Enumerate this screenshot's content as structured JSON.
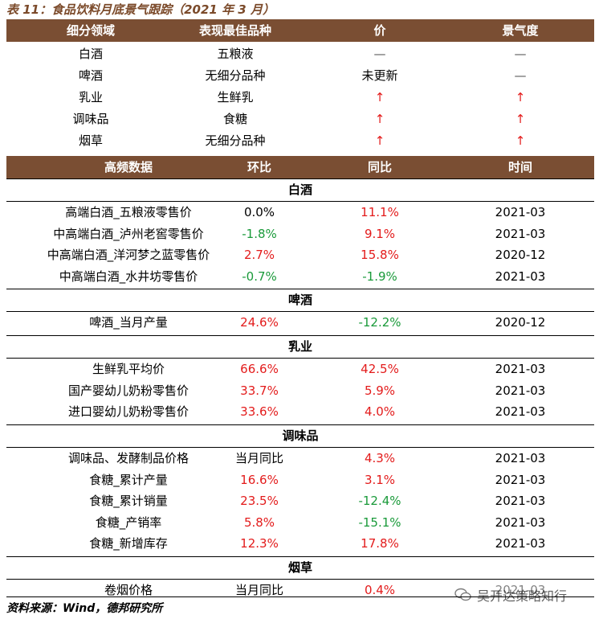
{
  "title": "表 11：食品饮料月底景气跟踪（2021 年 3 月）",
  "top_header": [
    "细分领域",
    "表现最佳品种",
    "价",
    "景气度"
  ],
  "top_rows": [
    {
      "segment": "白酒",
      "best": "五粮液",
      "price": "—",
      "prosperity": "—",
      "price_color": "dash",
      "pros_color": "dash"
    },
    {
      "segment": "啤酒",
      "best": "无细分品种",
      "price": "未更新",
      "prosperity": "—",
      "price_color": "",
      "pros_color": "dash"
    },
    {
      "segment": "乳业",
      "best": "生鲜乳",
      "price": "↑",
      "prosperity": "↑",
      "price_color": "red",
      "pros_color": "red"
    },
    {
      "segment": "调味品",
      "best": "食糖",
      "price": "↑",
      "prosperity": "↑",
      "price_color": "red",
      "pros_color": "red"
    },
    {
      "segment": "烟草",
      "best": "无细分品种",
      "price": "↑",
      "prosperity": "↑",
      "price_color": "red",
      "pros_color": "red"
    }
  ],
  "hf_header": [
    "高频数据",
    "环比",
    "同比",
    "时间"
  ],
  "sections": [
    {
      "name": "白酒",
      "rows": [
        {
          "item": "高端白酒_五粮液零售价",
          "mom": "0.0%",
          "yoy": "11.1%",
          "date": "2021-03",
          "mom_color": "",
          "yoy_color": "red"
        },
        {
          "item": "中高端白酒_泸州老窖零售价",
          "mom": "-1.8%",
          "yoy": "9.1%",
          "date": "2021-03",
          "mom_color": "green",
          "yoy_color": "red"
        },
        {
          "item": "中高端白酒_洋河梦之蓝零售价",
          "mom": "2.7%",
          "yoy": "15.8%",
          "date": "2020-12",
          "mom_color": "red",
          "yoy_color": "red"
        },
        {
          "item": "中高端白酒_水井坊零售价",
          "mom": "-0.7%",
          "yoy": "-1.9%",
          "date": "2021-03",
          "mom_color": "green",
          "yoy_color": "green"
        }
      ]
    },
    {
      "name": "啤酒",
      "rows": [
        {
          "item": "啤酒_当月产量",
          "mom": "24.6%",
          "yoy": "-12.2%",
          "date": "2020-12",
          "mom_color": "red",
          "yoy_color": "green"
        }
      ]
    },
    {
      "name": "乳业",
      "rows": [
        {
          "item": "生鲜乳平均价",
          "mom": "66.6%",
          "yoy": "42.5%",
          "date": "2021-03",
          "mom_color": "red",
          "yoy_color": "red"
        },
        {
          "item": "国产婴幼儿奶粉零售价",
          "mom": "33.7%",
          "yoy": "5.9%",
          "date": "2021-03",
          "mom_color": "red",
          "yoy_color": "red"
        },
        {
          "item": "进口婴幼儿奶粉零售价",
          "mom": "33.6%",
          "yoy": "4.0%",
          "date": "2021-03",
          "mom_color": "red",
          "yoy_color": "red"
        }
      ]
    },
    {
      "name": "调味品",
      "rows": [
        {
          "item": "调味品、发酵制品价格",
          "mom": "当月同比",
          "yoy": "4.3%",
          "date": "2021-03",
          "mom_color": "",
          "yoy_color": "red"
        },
        {
          "item": "食糖_累计产量",
          "mom": "16.6%",
          "yoy": "3.1%",
          "date": "2021-03",
          "mom_color": "red",
          "yoy_color": "red"
        },
        {
          "item": "食糖_累计销量",
          "mom": "23.5%",
          "yoy": "-12.4%",
          "date": "2021-03",
          "mom_color": "red",
          "yoy_color": "green"
        },
        {
          "item": "食糖_产销率",
          "mom": "5.8%",
          "yoy": "-15.1%",
          "date": "2021-03",
          "mom_color": "red",
          "yoy_color": "green"
        },
        {
          "item": "食糖_新增库存",
          "mom": "12.3%",
          "yoy": "17.8%",
          "date": "2021-03",
          "mom_color": "red",
          "yoy_color": "red"
        }
      ]
    },
    {
      "name": "烟草",
      "rows": [
        {
          "item": "卷烟价格",
          "mom": "当月同比",
          "yoy": "0.4%",
          "date": "2021-03",
          "mom_color": "",
          "yoy_color": "red"
        }
      ]
    }
  ],
  "source": "资料来源：Wind，德邦研究所",
  "watermark": "吴开达策略知行",
  "colors": {
    "header_bg": "#7a4e33",
    "up": "#e31b1b",
    "down": "#1a9a3a"
  }
}
